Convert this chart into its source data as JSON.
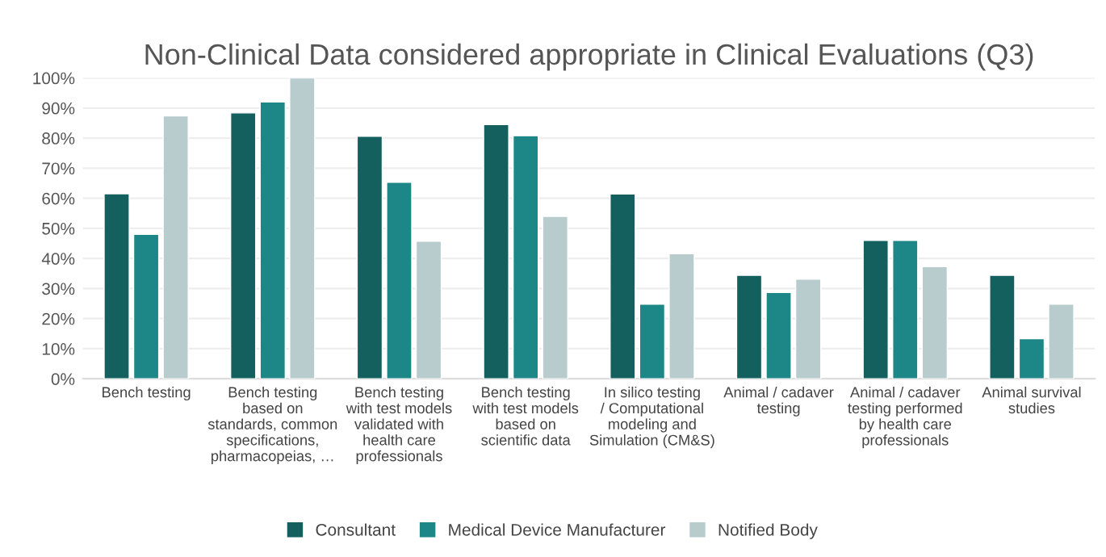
{
  "chart_data": {
    "type": "bar",
    "title": "Non-Clinical Data considered appropriate in Clinical Evaluations (Q3)",
    "categories": [
      "Bench testing",
      "Bench testing based on standards, common specifications, pharmacopeias, …",
      "Bench testing with test models validated with health care professionals",
      "Bench testing with test models based on scientific data",
      "In silico testing / Computational modeling and Simulation (CM&S)",
      "Animal / cadaver testing",
      "Animal / cadaver testing performed by health care professionals",
      "Animal survival studies"
    ],
    "series": [
      {
        "name": "Consultant",
        "color": "#14605f",
        "values": [
          61.5,
          88.4,
          80.6,
          84.5,
          61.4,
          34.4,
          46,
          34.4
        ]
      },
      {
        "name": "Medical Device Manufacturer",
        "color": "#1d8787",
        "values": [
          48,
          92,
          65.3,
          80.8,
          24.8,
          28.7,
          46,
          13.3
        ]
      },
      {
        "name": "Notified Body",
        "color": "#b8cccd",
        "values": [
          87.4,
          100,
          45.7,
          54,
          41.6,
          33.1,
          37.3,
          24.8
        ]
      }
    ],
    "ylim": [
      0,
      100
    ],
    "yticks": [
      {
        "value": 0,
        "label": "0%"
      },
      {
        "value": 10,
        "label": "10%"
      },
      {
        "value": 20,
        "label": "20%"
      },
      {
        "value": 30,
        "label": "30%"
      },
      {
        "value": 40,
        "label": "40%"
      },
      {
        "value": 50,
        "label": "50%"
      },
      {
        "value": 60,
        "label": "60%"
      },
      {
        "value": 70,
        "label": "70%"
      },
      {
        "value": 80,
        "label": "80%"
      },
      {
        "value": 90,
        "label": "90%"
      },
      {
        "value": 100,
        "label": "100%"
      }
    ],
    "grid": "y",
    "legend": "bottom"
  }
}
